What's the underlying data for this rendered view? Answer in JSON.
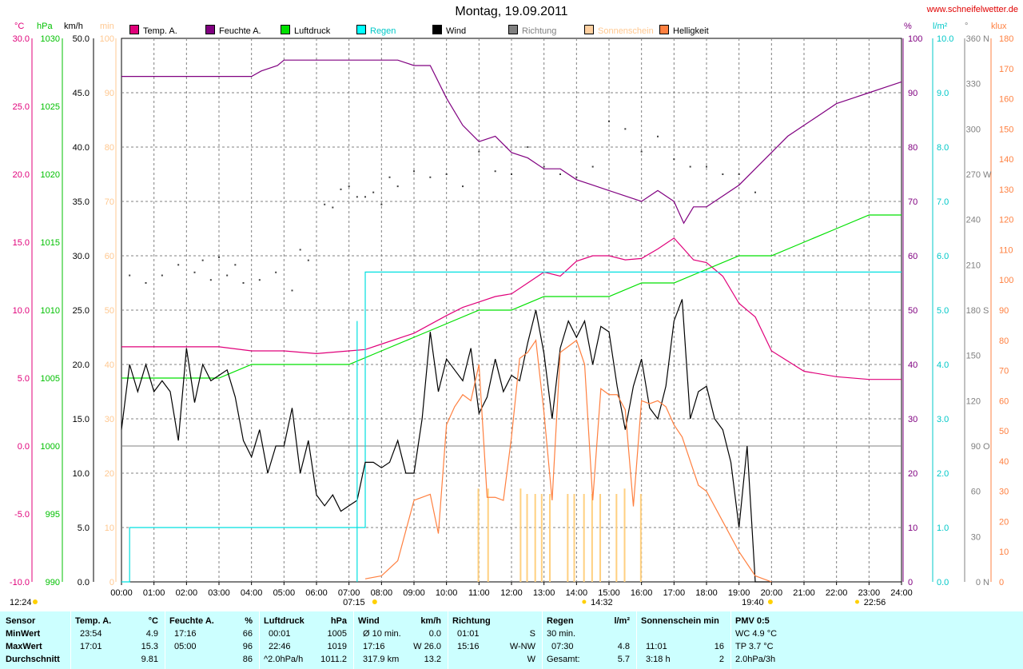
{
  "title": "Montag, 19.09.2011",
  "site": "www.schneifelwetter.de",
  "legend": [
    {
      "label": "Temp. A.",
      "color": "#e0007a"
    },
    {
      "label": "Feuchte A.",
      "color": "#800080"
    },
    {
      "label": "Luftdruck",
      "color": "#00e000"
    },
    {
      "label": "Regen",
      "color": "#00e0e0"
    },
    {
      "label": "Wind",
      "color": "#000000"
    },
    {
      "label": "Richtung",
      "color": "#808080"
    },
    {
      "label": "Sonnenschein",
      "color": "#ffd080"
    },
    {
      "label": "Helligkeit",
      "color": "#ff8040"
    }
  ],
  "units": {
    "temp": "°C",
    "press": "hPa",
    "wind": "km/h",
    "sun": "min",
    "hum": "%",
    "rain": "l/m²",
    "dir": "°",
    "lux": "klux"
  },
  "chart_data": {
    "type": "line",
    "title": "Montag, 19.09.2011",
    "x_ticks": [
      "00:00",
      "01:00",
      "02:00",
      "03:00",
      "04:00",
      "05:00",
      "06:00",
      "07:00",
      "08:00",
      "09:00",
      "10:00",
      "11:00",
      "12:00",
      "13:00",
      "14:00",
      "15:00",
      "16:00",
      "17:00",
      "18:00",
      "19:00",
      "20:00",
      "21:00",
      "22:00",
      "23:00",
      "24:00"
    ],
    "axes": {
      "temp": {
        "ticks": [
          "-10.0",
          "-5.0",
          "0.0",
          "5.0",
          "10.0",
          "15.0",
          "20.0",
          "25.0",
          "30.0"
        ],
        "range": [
          -10,
          30
        ]
      },
      "press": {
        "ticks": [
          "990",
          "995",
          "1000",
          "1005",
          "1010",
          "1015",
          "1020",
          "1025",
          "1030"
        ],
        "range": [
          990,
          1030
        ]
      },
      "wind": {
        "ticks": [
          "0.0",
          "5.0",
          "10.0",
          "15.0",
          "20.0",
          "25.0",
          "30.0",
          "35.0",
          "40.0",
          "45.0",
          "50.0"
        ],
        "range": [
          0,
          50
        ]
      },
      "sun": {
        "ticks": [
          "0",
          "10",
          "20",
          "30",
          "40",
          "50",
          "60",
          "70",
          "80",
          "90",
          "100"
        ],
        "range": [
          0,
          100
        ]
      },
      "hum": {
        "ticks": [
          "0",
          "10",
          "20",
          "30",
          "40",
          "50",
          "60",
          "70",
          "80",
          "90",
          "100"
        ],
        "range": [
          0,
          100
        ]
      },
      "rain": {
        "ticks": [
          "0.0",
          "1.0",
          "2.0",
          "3.0",
          "4.0",
          "5.0",
          "6.0",
          "7.0",
          "8.0",
          "9.0",
          "10.0"
        ],
        "range": [
          0,
          10
        ]
      },
      "dir": {
        "ticks": [
          "0",
          "30",
          "60",
          "90",
          "120",
          "150",
          "180",
          "210",
          "240",
          "270",
          "300",
          "330",
          "360"
        ],
        "labels": [
          "0 N",
          "90 O",
          "180 S",
          "270 W",
          "360 N"
        ],
        "range": [
          0,
          360
        ]
      },
      "lux": {
        "ticks": [
          "0",
          "10",
          "20",
          "30",
          "40",
          "50",
          "60",
          "70",
          "80",
          "90",
          "100",
          "110",
          "120",
          "130",
          "140",
          "150",
          "160",
          "170",
          "180"
        ],
        "range": [
          0,
          180
        ]
      }
    },
    "series": [
      {
        "name": "Temp. A.",
        "axis": "temp",
        "color": "#e0007a",
        "x": [
          0,
          1,
          2,
          3,
          4,
          5,
          6,
          7,
          7.5,
          8,
          9,
          10,
          10.5,
          11,
          11.5,
          12,
          12.5,
          13,
          13.5,
          14,
          14.5,
          15,
          15.5,
          16,
          16.5,
          17,
          17.3,
          17.6,
          18,
          18.5,
          19,
          19.5,
          20,
          21,
          22,
          23,
          24
        ],
        "y": [
          7.3,
          7.3,
          7.3,
          7.3,
          7.0,
          7.0,
          6.8,
          7.0,
          7.1,
          7.5,
          8.3,
          9.6,
          10.2,
          10.6,
          11.0,
          11.2,
          12.0,
          12.8,
          12.5,
          13.6,
          14.0,
          14.0,
          13.7,
          13.8,
          14.5,
          15.3,
          14.5,
          13.7,
          13.5,
          12.5,
          10.5,
          9.5,
          7.0,
          5.5,
          5.1,
          4.9,
          4.9
        ]
      },
      {
        "name": "Feuchte A.",
        "axis": "hum",
        "color": "#800080",
        "x": [
          0,
          1,
          2,
          3,
          4,
          4.3,
          4.8,
          5,
          6,
          7,
          8,
          8.5,
          9,
          9.5,
          10,
          10.5,
          11,
          11.5,
          12,
          12.5,
          13,
          13.5,
          14,
          14.5,
          15,
          15.5,
          16,
          16.5,
          17,
          17.3,
          17.6,
          18,
          18.5,
          19,
          19.5,
          20,
          20.5,
          21,
          21.5,
          22,
          22.5,
          23,
          23.5,
          24
        ],
        "y": [
          93,
          93,
          93,
          93,
          93,
          94,
          95,
          96,
          96,
          96,
          96,
          96,
          95,
          95,
          89,
          84,
          81,
          82,
          79,
          78,
          76,
          76,
          74,
          73,
          72,
          71,
          70,
          72,
          70,
          66,
          69,
          69,
          71,
          73,
          76,
          79,
          82,
          84,
          86,
          88,
          89,
          90,
          91,
          92
        ]
      },
      {
        "name": "Luftdruck",
        "axis": "press",
        "color": "#00e000",
        "x": [
          0,
          1,
          2,
          3,
          4,
          5,
          6,
          7,
          8,
          9,
          10,
          11,
          12,
          13,
          14,
          15,
          16,
          17,
          18,
          19,
          20,
          21,
          22,
          23,
          24
        ],
        "y": [
          1005,
          1005,
          1005,
          1005,
          1006,
          1006,
          1006,
          1006,
          1007,
          1008,
          1009,
          1010,
          1010,
          1011,
          1011,
          1011,
          1012,
          1012,
          1013,
          1014,
          1014,
          1015,
          1016,
          1017,
          1017
        ]
      },
      {
        "name": "Regen",
        "axis": "rain",
        "color": "#00e0e0",
        "x": [
          0,
          0.25,
          7.25,
          7.5,
          24
        ],
        "y": [
          0,
          1.0,
          1.0,
          5.7,
          5.7
        ]
      },
      {
        "name": "Wind",
        "axis": "wind",
        "color": "#000000",
        "x": [
          0,
          0.25,
          0.5,
          0.75,
          1,
          1.25,
          1.5,
          1.75,
          2,
          2.25,
          2.5,
          2.75,
          3,
          3.25,
          3.5,
          3.75,
          4,
          4.25,
          4.5,
          4.75,
          5,
          5.25,
          5.5,
          5.75,
          6,
          6.25,
          6.5,
          6.75,
          7,
          7.25,
          7.5,
          7.75,
          8,
          8.25,
          8.5,
          8.75,
          9,
          9.25,
          9.5,
          9.75,
          10,
          10.25,
          10.5,
          10.75,
          11,
          11.25,
          11.5,
          11.75,
          12,
          12.25,
          12.5,
          12.75,
          13,
          13.25,
          13.5,
          13.75,
          14,
          14.25,
          14.5,
          14.75,
          15,
          15.25,
          15.5,
          15.75,
          16,
          16.25,
          16.5,
          16.75,
          17,
          17.25,
          17.5,
          17.75,
          18,
          18.25,
          18.5,
          18.75,
          19,
          19.25,
          19.5,
          19.75,
          20
        ],
        "y": [
          14,
          20,
          17.5,
          20,
          17.5,
          18.5,
          17.5,
          13,
          21.5,
          16.5,
          20,
          18.5,
          19,
          19.5,
          17,
          13,
          11.5,
          14,
          10,
          12.5,
          12.5,
          16,
          10,
          13,
          8,
          7,
          8,
          6.5,
          7,
          7.5,
          11,
          11,
          10.5,
          11,
          13,
          10,
          10,
          15,
          23,
          17.5,
          20.5,
          19.5,
          18.5,
          21.5,
          15.5,
          17,
          20.5,
          17.5,
          19,
          18.5,
          22,
          25,
          21,
          15,
          21.5,
          24,
          22.5,
          24,
          20,
          23.5,
          23,
          18,
          14,
          18,
          20.5,
          16,
          15,
          18,
          24,
          26,
          15,
          17.5,
          18,
          15,
          14,
          11,
          5,
          12.5,
          0,
          0,
          0
        ]
      },
      {
        "name": "Richtung",
        "axis": "dir",
        "color": "#808080",
        "type": "scatter",
        "x": [
          0.25,
          0.75,
          1.25,
          1.75,
          2.25,
          2.5,
          2.75,
          3,
          3.25,
          3.5,
          3.75,
          4.25,
          4.75,
          5.25,
          5.5,
          5.75,
          6.25,
          6.5,
          6.75,
          7,
          7.25,
          7.5,
          7.75,
          8,
          8.25,
          8.5,
          9,
          9.5,
          10,
          10.5,
          11,
          11.5,
          12,
          12.5,
          13,
          13.5,
          14,
          14.5,
          15,
          15.5,
          16,
          16.5,
          17,
          17.5,
          18,
          18.5,
          19,
          19.5
        ],
        "y": [
          203,
          198,
          203,
          210,
          205,
          213,
          200,
          215,
          203,
          210,
          198,
          200,
          205,
          193,
          220,
          213,
          250,
          248,
          260,
          262,
          255,
          255,
          258,
          250,
          268,
          262,
          272,
          268,
          270,
          262,
          285,
          272,
          270,
          288,
          275,
          270,
          268,
          275,
          305,
          300,
          285,
          295,
          280,
          275,
          275,
          270,
          270,
          258
        ]
      },
      {
        "name": "Sonnenschein",
        "axis": "sun",
        "color": "#ffd080",
        "type": "bar",
        "x": [
          10.98,
          11.28,
          12.28,
          12.48,
          12.73,
          12.93,
          13.18,
          13.73,
          13.93,
          14.23,
          14.48,
          14.73,
          15.23,
          15.48,
          15.98
        ],
        "y": [
          16,
          16,
          16,
          15,
          15,
          15,
          15,
          15,
          15,
          15,
          15,
          15,
          15,
          16,
          15
        ]
      },
      {
        "name": "Helligkeit",
        "axis": "lux",
        "color": "#ff8040",
        "x": [
          7.5,
          8,
          8.5,
          9,
          9.25,
          9.5,
          9.75,
          10,
          10.25,
          10.5,
          10.75,
          11,
          11.25,
          11.5,
          11.75,
          12,
          12.25,
          12.5,
          12.75,
          13,
          13.25,
          13.5,
          13.75,
          14,
          14.25,
          14.5,
          14.75,
          15,
          15.25,
          15.5,
          15.75,
          16,
          16.25,
          16.5,
          16.75,
          17,
          17.25,
          17.5,
          17.75,
          18,
          18.5,
          19,
          19.5,
          20
        ],
        "y": [
          1,
          2,
          7,
          27,
          28,
          29,
          16,
          52,
          58,
          62,
          60,
          72,
          28,
          28,
          27,
          48,
          74,
          76,
          80,
          56,
          27,
          76,
          78,
          80,
          72,
          27,
          64,
          62,
          62,
          57,
          25,
          60,
          59,
          60,
          58,
          52,
          48,
          40,
          32,
          30,
          20,
          10,
          2,
          0
        ]
      }
    ],
    "markers": [
      {
        "label": "07:15",
        "x": 7.25
      },
      {
        "label": "14:32",
        "x": 14.53
      },
      {
        "label": "19:40",
        "x": 19.67
      },
      {
        "label": "22:56",
        "x": 22.93
      },
      {
        "label": "12:24",
        "x": null
      }
    ]
  },
  "stats": {
    "rowlabels": [
      "Sensor",
      "MinWert",
      "MaxWert",
      "Durchschnitt"
    ],
    "temp": {
      "h1": "Temp. A.",
      "h2": "°C",
      "min_t": "23:54",
      "min_v": "4.9",
      "max_t": "17:01",
      "max_v": "15.3",
      "avg_v": "9.81"
    },
    "hum": {
      "h1": "Feuchte A.",
      "h2": "%",
      "min_t": "17:16",
      "min_v": "66",
      "max_t": "05:00",
      "max_v": "96",
      "avg_v": "86"
    },
    "press": {
      "h1": "Luftdruck",
      "h2": "hPa",
      "min_t": "00:01",
      "min_v": "1005",
      "max_t": "22:46",
      "max_v": "1019",
      "avg_t": "^2.0hPa/h",
      "avg_v": "1011.2"
    },
    "wind": {
      "h1": "Wind",
      "h2": "km/h",
      "min_t": "Ø 10 min.",
      "min_v": "0.0",
      "max_t": "17:16",
      "max_v": "W 26.0",
      "avg_t": "317.9 km",
      "avg_v": "13.2"
    },
    "dir": {
      "h1": "Richtung",
      "min_t": "01:01",
      "min_v": "S",
      "max_t": "15:16",
      "max_v": "W-NW",
      "avg_v": "W"
    },
    "rain": {
      "h1": "Regen",
      "h2": "l/m²",
      "min_t": "30 min.",
      "max_t": "07:30",
      "max_v": "4.8",
      "avg_t": "Gesamt:",
      "avg_v": "5.7"
    },
    "sun": {
      "h1": "Sonnenschein min",
      "max_t": "11:01",
      "max_v": "16",
      "avg_t": "3:18 h",
      "avg_v": "2"
    },
    "pmv": {
      "h1": "PMV 0:5",
      "l1": "WC 4.9 °C",
      "l2": "TP 3.7 °C",
      "l3": "2.0hPa/3h"
    }
  }
}
